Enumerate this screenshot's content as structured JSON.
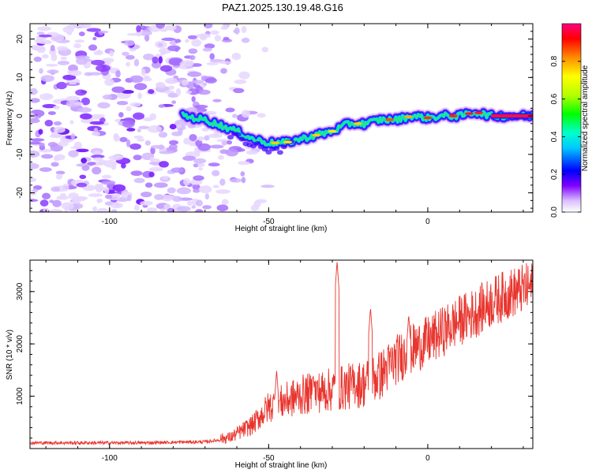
{
  "figure": {
    "title": "PAZ1.2025.130.19.48.G16"
  },
  "chart_data": [
    {
      "type": "heatmap",
      "xlabel": "Height of straight line (km)",
      "ylabel": "Frequency (Hz)",
      "xlim": [
        -125,
        33
      ],
      "ylim": [
        -25,
        24
      ],
      "xticks": [
        "-100",
        "-50",
        "0"
      ],
      "yticks": [
        "-20",
        "-10",
        "0",
        "10",
        "20"
      ],
      "colorbar": {
        "label": "Normalized spectral amplitude",
        "range": [
          0,
          1
        ],
        "ticks": [
          "0.0",
          "0.2",
          "0.4",
          "0.6",
          "0.8"
        ],
        "colormap": "rainbow: violet (low) - blue - cyan - green - yellow - orange - red - magenta (high)"
      },
      "ridge": {
        "description": "high-amplitude ridge of the signal frequency vs height",
        "x": [
          -77,
          -70,
          -65,
          -60,
          -55,
          -50,
          -45,
          -40,
          -35,
          -30,
          -25,
          -20,
          -15,
          -10,
          -5,
          0,
          5,
          10,
          15,
          20,
          25,
          33
        ],
        "y": [
          0,
          -1,
          -2.5,
          -4,
          -6,
          -7,
          -7,
          -6,
          -5,
          -4,
          -2,
          -2,
          -1,
          -1,
          0,
          -0.5,
          0,
          0,
          1,
          0,
          0,
          0
        ]
      },
      "noise_region": {
        "x_from": -125,
        "x_to": -55,
        "description": "scattered low-amplitude noise blobs (violet)"
      }
    },
    {
      "type": "line",
      "xlabel": "Height of straight line (km)",
      "ylabel": "SNR (10 * v/v)",
      "xlim": [
        -125,
        33
      ],
      "ylim": [
        0,
        3600
      ],
      "xticks": [
        "-100",
        "-50",
        "0"
      ],
      "yticks": [
        "1000",
        "2000",
        "3000"
      ],
      "color": "#e8352e",
      "trend": {
        "x": [
          -125,
          -90,
          -70,
          -62,
          -55,
          -50,
          -45,
          -40,
          -35,
          -30,
          -25,
          -20,
          -15,
          -10,
          -5,
          0,
          5,
          10,
          15,
          20,
          25,
          33
        ],
        "y": [
          100,
          100,
          120,
          180,
          400,
          700,
          800,
          900,
          950,
          1000,
          1050,
          1100,
          1250,
          1550,
          1750,
          1900,
          2100,
          2300,
          2450,
          2650,
          2800,
          2950
        ]
      },
      "spikes": [
        {
          "x": -47.5,
          "y": 1500
        },
        {
          "x": -36,
          "y": 1420
        },
        {
          "x": -28.5,
          "y": 3580
        },
        {
          "x": -22.5,
          "y": 1200
        },
        {
          "x": -18,
          "y": 2700
        },
        {
          "x": -6,
          "y": 2560
        }
      ]
    }
  ]
}
